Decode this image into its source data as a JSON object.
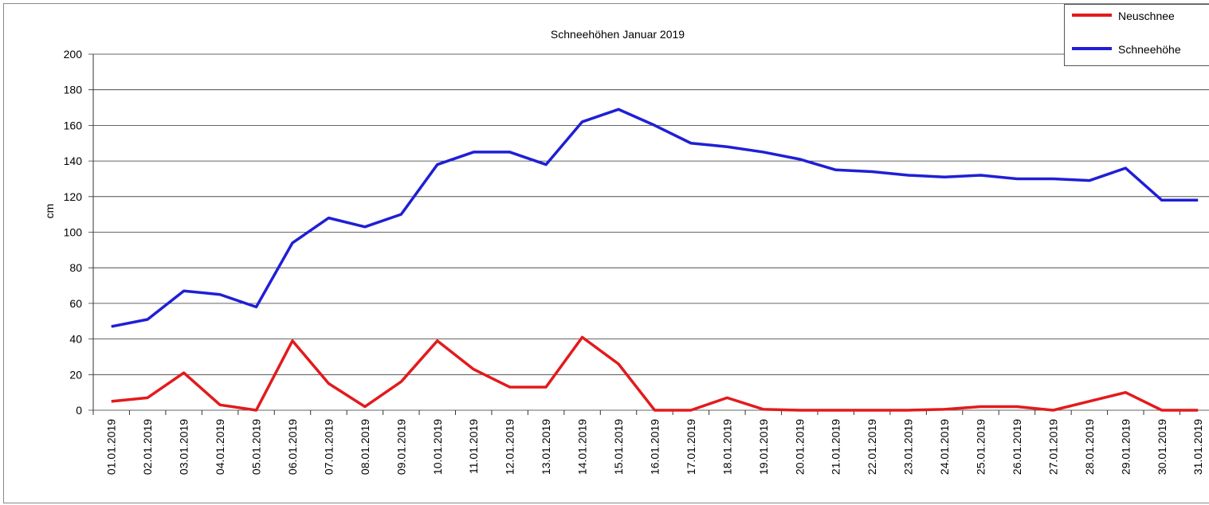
{
  "chart_data": {
    "type": "line",
    "title": "Schneehöhen Januar 2019",
    "y_label": "cm",
    "categories": [
      "01.01.2019",
      "02.01.2019",
      "03.01.2019",
      "04.01.2019",
      "05.01.2019",
      "06.01.2019",
      "07.01.2019",
      "08.01.2019",
      "09.01.2019",
      "10.01.2019",
      "11.01.2019",
      "12.01.2019",
      "13.01.2019",
      "14.01.2019",
      "15.01.2019",
      "16.01.2019",
      "17.01.2019",
      "18.01.2019",
      "19.01.2019",
      "20.01.2019",
      "21.01.2019",
      "22.01.2019",
      "23.01.2019",
      "24.01.2019",
      "25.01.2019",
      "26.01.2019",
      "27.01.2019",
      "28.01.2019",
      "29.01.2019",
      "30.01.2019",
      "31.01.2019"
    ],
    "series": [
      {
        "name": "Neuschnee",
        "color": "#e31a1c",
        "values": [
          5,
          7,
          21,
          3,
          0,
          39,
          15,
          2,
          16,
          39,
          23,
          13,
          13,
          41,
          26,
          0,
          0,
          7,
          0.5,
          0,
          0,
          0,
          0,
          0.5,
          2,
          2,
          0,
          5,
          10,
          0,
          0
        ]
      },
      {
        "name": "Schneehöhe",
        "color": "#1f1fd6",
        "values": [
          47,
          51,
          67,
          65,
          58,
          94,
          108,
          103,
          110,
          138,
          145,
          145,
          138,
          162,
          169,
          160,
          150,
          148,
          145,
          141,
          135,
          134,
          132,
          131,
          132,
          130,
          130,
          129,
          136,
          118,
          118
        ]
      }
    ],
    "ylim": [
      0,
      200
    ],
    "yticks": [
      0,
      20,
      40,
      60,
      80,
      100,
      120,
      140,
      160,
      180,
      200
    ],
    "grid": true,
    "legend": "top-right"
  }
}
